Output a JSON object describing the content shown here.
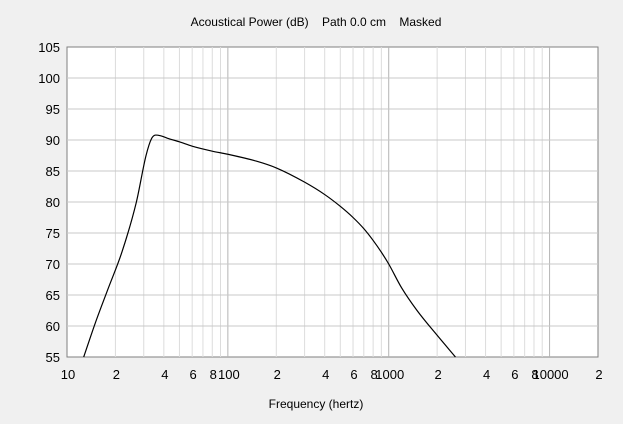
{
  "chart_data": {
    "type": "line",
    "title": "Acoustical Power (dB)    Path 0.0 cm    Masked",
    "xlabel": "Frequency (hertz)",
    "ylabel": "",
    "x_scale": "log",
    "xlim": [
      10,
      20000
    ],
    "ylim": [
      55,
      105
    ],
    "grid": true,
    "y_ticks": [
      55,
      60,
      65,
      70,
      75,
      80,
      85,
      90,
      95,
      100,
      105
    ],
    "x_tick_labels": [
      {
        "value": 10,
        "label": "10"
      },
      {
        "value": 20,
        "label": "2"
      },
      {
        "value": 40,
        "label": "4"
      },
      {
        "value": 60,
        "label": "6"
      },
      {
        "value": 80,
        "label": "8"
      },
      {
        "value": 100,
        "label": "100"
      },
      {
        "value": 200,
        "label": "2"
      },
      {
        "value": 400,
        "label": "4"
      },
      {
        "value": 600,
        "label": "6"
      },
      {
        "value": 800,
        "label": "8"
      },
      {
        "value": 1000,
        "label": "1000"
      },
      {
        "value": 2000,
        "label": "2"
      },
      {
        "value": 4000,
        "label": "4"
      },
      {
        "value": 6000,
        "label": "6"
      },
      {
        "value": 8000,
        "label": "8"
      },
      {
        "value": 10000,
        "label": "10000"
      },
      {
        "value": 20000,
        "label": "2"
      }
    ],
    "series": [
      {
        "color": "#000000",
        "x": [
          12.7,
          15,
          18,
          22,
          27,
          31,
          33.5,
          35.6,
          38,
          42,
          50,
          60,
          80,
          100,
          150,
          200,
          300,
          400,
          500,
          600,
          700,
          800,
          900,
          1000,
          1200,
          1500,
          2000,
          2600
        ],
        "y": [
          55,
          60.5,
          66,
          72,
          80,
          87.5,
          90.2,
          90.8,
          90.7,
          90.3,
          89.7,
          89.0,
          88.2,
          87.7,
          86.6,
          85.5,
          83.2,
          81.2,
          79.3,
          77.5,
          75.7,
          73.8,
          71.9,
          70,
          66.2,
          62.5,
          58.5,
          55
        ]
      }
    ]
  }
}
